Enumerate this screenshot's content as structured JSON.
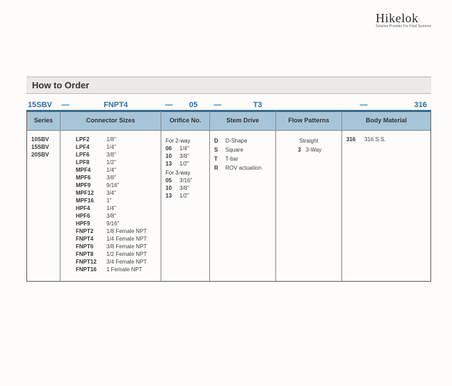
{
  "brand": {
    "name": "Hikelok",
    "tagline": "Solution Provider For Fluid Systems"
  },
  "title": "How to Order",
  "code_segments": [
    "15SBV",
    "FNPT4",
    "05",
    "T3",
    "316"
  ],
  "dash": "—",
  "columns": {
    "series": {
      "header": "Series",
      "rows": [
        {
          "code": "10SBV"
        },
        {
          "code": "15SBV"
        },
        {
          "code": "20SBV"
        }
      ]
    },
    "connector": {
      "header": "Connector Sizes",
      "rows": [
        {
          "code": "LPF2",
          "val": "1/8\""
        },
        {
          "code": "LPF4",
          "val": "1/4\""
        },
        {
          "code": "LPF6",
          "val": "3/8\""
        },
        {
          "code": "LPF8",
          "val": "1/2\""
        },
        {
          "code": "MPF4",
          "val": "1/4\""
        },
        {
          "code": "MPF6",
          "val": "3/8\""
        },
        {
          "code": "MPF9",
          "val": "9/16\""
        },
        {
          "code": "MPF12",
          "val": "3/4\""
        },
        {
          "code": "MPF16",
          "val": "1\""
        },
        {
          "code": "HPF4",
          "val": "1/4\""
        },
        {
          "code": "HPF6",
          "val": "3/8\""
        },
        {
          "code": "HPF9",
          "val": "9/16\""
        },
        {
          "code": "FNPT2",
          "val": "1/8 Female NPT"
        },
        {
          "code": "FNPT4",
          "val": "1/4 Female NPT"
        },
        {
          "code": "FNPT6",
          "val": "3/8 Female NPT"
        },
        {
          "code": "FNPT8",
          "val": "1/2 Female NPT"
        },
        {
          "code": "FNPT12",
          "val": "3/4 Female NPT"
        },
        {
          "code": "FNPT16",
          "val": "1 Female NPT"
        }
      ]
    },
    "orifice": {
      "header": "Orifice No.",
      "sect1": "For 2-way",
      "rows1": [
        {
          "code": "06",
          "val": "1/4\""
        },
        {
          "code": "10",
          "val": "3/8\""
        },
        {
          "code": "13",
          "val": "1/2\""
        }
      ],
      "sect2": "For 3-way",
      "rows2": [
        {
          "code": "05",
          "val": "3/16\""
        },
        {
          "code": "10",
          "val": "3/8\""
        },
        {
          "code": "13",
          "val": "1/2\""
        }
      ]
    },
    "stem": {
      "header": "Stem Drive",
      "rows": [
        {
          "code": "D",
          "val": "D-Shape"
        },
        {
          "code": "S",
          "val": "Square"
        },
        {
          "code": "T",
          "val": "T-bar"
        },
        {
          "code": "R",
          "val": "ROV actuation"
        }
      ]
    },
    "flow": {
      "header": "Flow Patterns",
      "rows": [
        {
          "code": "",
          "val": "Straight"
        },
        {
          "code": "3",
          "val": "3-Way"
        }
      ]
    },
    "body": {
      "header": "Body Material",
      "rows": [
        {
          "code": "316",
          "val": "316 S.S."
        }
      ]
    }
  },
  "widths": {
    "series": 48,
    "conn": 145,
    "orif": 70,
    "stem": 95,
    "flow": 95
  }
}
